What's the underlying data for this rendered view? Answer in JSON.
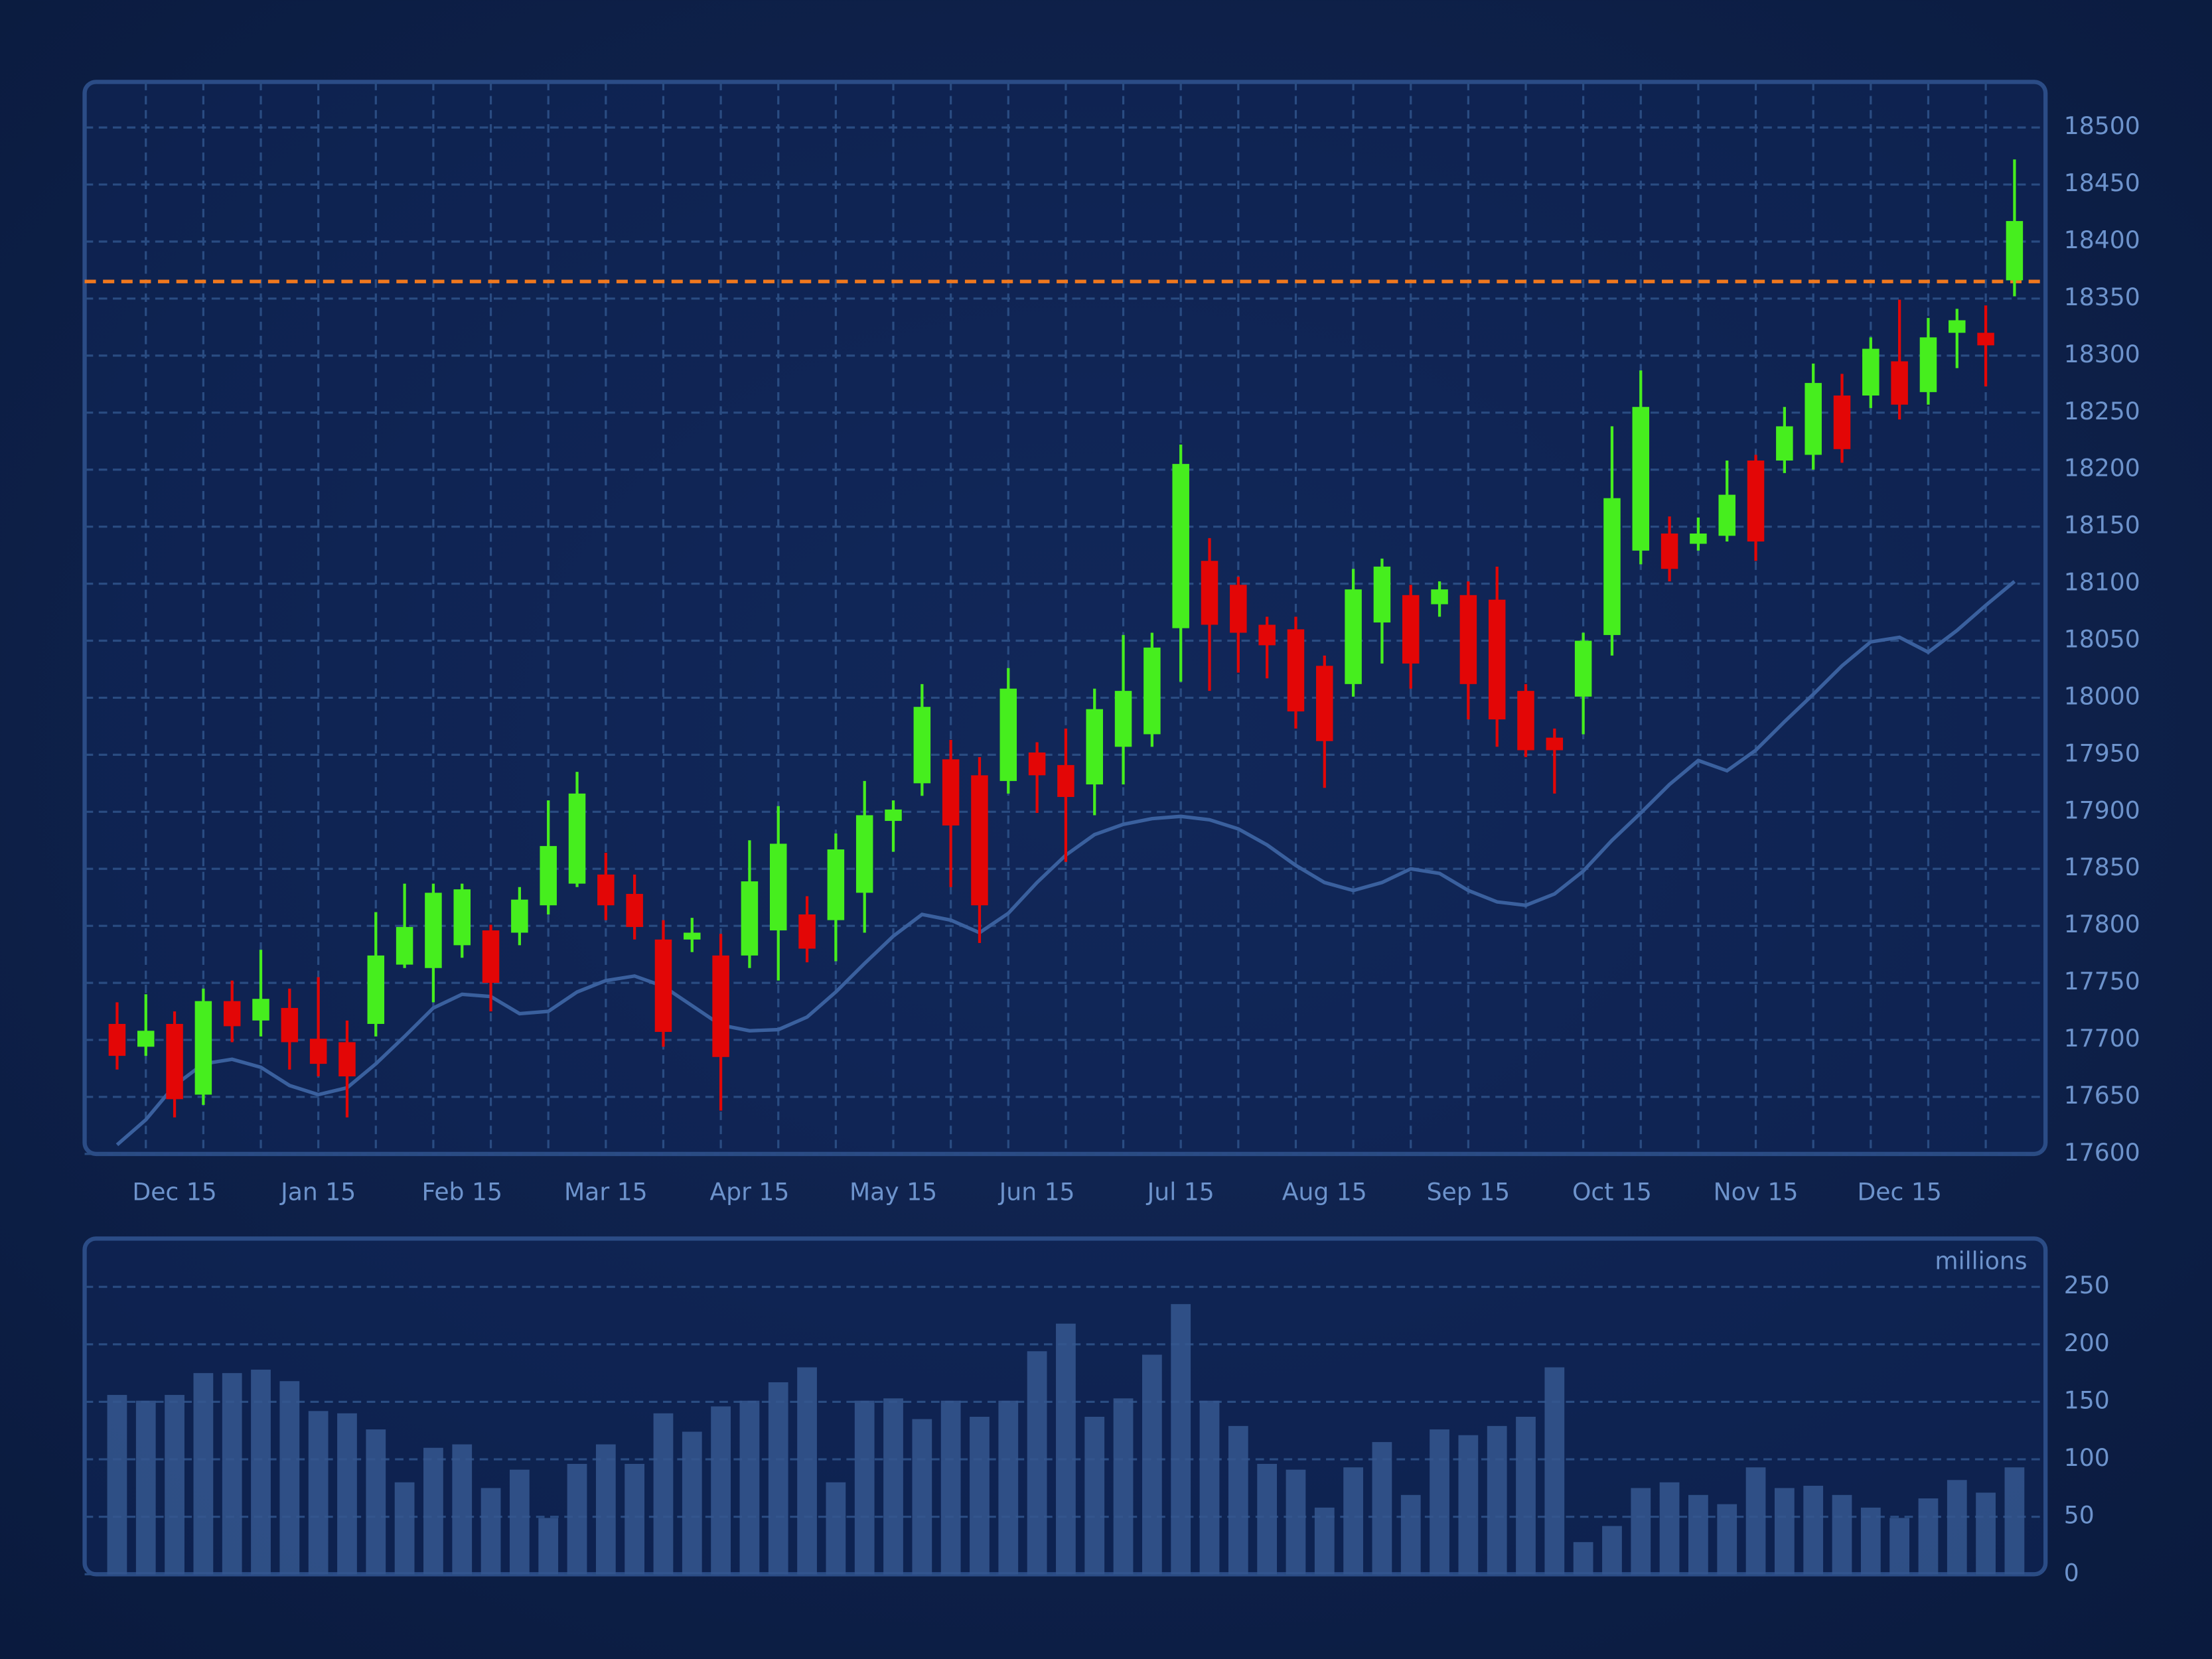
{
  "chart_data": [
    {
      "type": "candlestick",
      "categories": [
        null,
        null,
        "Dec 15",
        null,
        null,
        null,
        null,
        "Jan 15",
        null,
        null,
        null,
        null,
        "Feb 15",
        null,
        null,
        null,
        null,
        "Mar 15",
        null,
        null,
        null,
        null,
        "Apr 15",
        null,
        null,
        null,
        null,
        "May 15",
        null,
        null,
        null,
        null,
        "Jun 15",
        null,
        null,
        null,
        null,
        "Jul 15",
        null,
        null,
        null,
        null,
        "Aug 15",
        null,
        null,
        null,
        null,
        "Sep 15",
        null,
        null,
        null,
        null,
        "Oct 15",
        null,
        null,
        null,
        null,
        "Nov 15",
        null,
        null,
        null,
        null,
        "Dec 15",
        null,
        null,
        null,
        null
      ],
      "open": [
        17714,
        17694,
        17714,
        17652,
        17734,
        17717,
        17728,
        17701,
        17698,
        17714,
        17766,
        17763,
        17783,
        17796,
        17794,
        17818,
        17837,
        17845,
        17828,
        17788,
        17788,
        17774,
        17774,
        17796,
        17810,
        17805,
        17829,
        17892,
        17925,
        17946,
        17932,
        17927,
        17952,
        17941,
        17924,
        17957,
        17968,
        18061,
        18120,
        18099,
        18064,
        18060,
        18028,
        18012,
        18066,
        18090,
        18082,
        18090,
        18086,
        18006,
        17965,
        18001,
        18055,
        18129,
        18144,
        18135,
        18142,
        18208,
        18208,
        18213,
        18265,
        18265,
        18295,
        18268,
        18320,
        18320,
        18366
      ],
      "high": [
        17733,
        17740,
        17725,
        17745,
        17752,
        17779,
        17745,
        17755,
        17717,
        17812,
        17837,
        17837,
        17837,
        17801,
        17834,
        17910,
        17935,
        17864,
        17845,
        17805,
        17807,
        17793,
        17875,
        17905,
        17826,
        17881,
        17927,
        17910,
        18012,
        17963,
        17948,
        18026,
        17961,
        17973,
        18008,
        18055,
        18057,
        18222,
        18140,
        18106,
        18071,
        18071,
        18037,
        18113,
        18122,
        18099,
        18102,
        18102,
        18115,
        18012,
        17973,
        18057,
        18238,
        18287,
        18159,
        18158,
        18208,
        18213,
        18255,
        18293,
        18284,
        18316,
        18349,
        18333,
        18341,
        18344,
        18472
      ],
      "low": [
        17674,
        17686,
        17632,
        17643,
        17698,
        17703,
        17674,
        17668,
        17632,
        17703,
        17763,
        17733,
        17772,
        17725,
        17783,
        17810,
        17834,
        17805,
        17788,
        17694,
        17777,
        17638,
        17763,
        17752,
        17768,
        17769,
        17794,
        17865,
        17914,
        17834,
        17785,
        17916,
        17899,
        17856,
        17897,
        17924,
        17957,
        18014,
        18006,
        18022,
        18017,
        17973,
        17921,
        18001,
        18030,
        18008,
        18071,
        17981,
        17957,
        17948,
        17916,
        17968,
        18037,
        18117,
        18102,
        18129,
        18137,
        18120,
        18197,
        18200,
        18206,
        18254,
        18244,
        18257,
        18289,
        18273,
        18352
      ],
      "close": [
        17686,
        17708,
        17648,
        17734,
        17712,
        17736,
        17698,
        17679,
        17668,
        17774,
        17799,
        17829,
        17832,
        17750,
        17823,
        17870,
        17916,
        17818,
        17799,
        17707,
        17794,
        17685,
        17839,
        17872,
        17780,
        17867,
        17897,
        17902,
        17992,
        17888,
        17818,
        18008,
        17932,
        17913,
        17990,
        18006,
        18044,
        18205,
        18064,
        18057,
        18046,
        17988,
        17962,
        18095,
        18115,
        18030,
        18095,
        18012,
        17981,
        17954,
        17954,
        18050,
        18175,
        18255,
        18113,
        18144,
        18178,
        18137,
        18238,
        18276,
        18218,
        18306,
        18257,
        18316,
        18331,
        18309,
        18418
      ],
      "up_color": "#46ee1e",
      "down_color": "#e30606",
      "line": {
        "values": [
          17608,
          17630,
          17660,
          17679,
          17683,
          17676,
          17660,
          17652,
          17658,
          17679,
          17703,
          17728,
          17740,
          17738,
          17723,
          17725,
          17742,
          17752,
          17756,
          17747,
          17730,
          17713,
          17708,
          17709,
          17720,
          17742,
          17767,
          17791,
          17810,
          17805,
          17794,
          17811,
          17838,
          17862,
          17880,
          17889,
          17894,
          17896,
          17893,
          17885,
          17871,
          17853,
          17838,
          17831,
          17838,
          17850,
          17846,
          17831,
          17821,
          17818,
          17828,
          17848,
          17875,
          17899,
          17924,
          17945,
          17936,
          17954,
          17979,
          18003,
          18028,
          18049,
          18053,
          18040,
          18059,
          18081,
          18102
        ],
        "color": "#3a609e"
      },
      "reference_line": {
        "value": 18365,
        "color": "#f0781e"
      },
      "ylim": [
        17600,
        18540
      ],
      "yticks": [
        17600,
        17650,
        17700,
        17750,
        17800,
        17850,
        17900,
        17950,
        18000,
        18050,
        18100,
        18150,
        18200,
        18250,
        18300,
        18350,
        18400,
        18450,
        18500
      ],
      "grid": true
    },
    {
      "type": "bar",
      "unit_label": "millions",
      "values": [
        156,
        151,
        156,
        175,
        175,
        178,
        168,
        142,
        140,
        126,
        80,
        110,
        113,
        75,
        91,
        49,
        96,
        113,
        96,
        140,
        124,
        146,
        151,
        167,
        180,
        80,
        151,
        153,
        135,
        151,
        137,
        151,
        194,
        218,
        137,
        153,
        191,
        235,
        151,
        129,
        96,
        91,
        58,
        93,
        115,
        69,
        126,
        121,
        129,
        137,
        180,
        28,
        42,
        75,
        80,
        69,
        61,
        93,
        75,
        77,
        69,
        58,
        49,
        66,
        82,
        71,
        93
      ],
      "color": "#35578f",
      "ylim": [
        0,
        292
      ],
      "yticks": [
        0,
        50,
        100,
        150,
        200,
        250
      ],
      "grid": true
    }
  ]
}
